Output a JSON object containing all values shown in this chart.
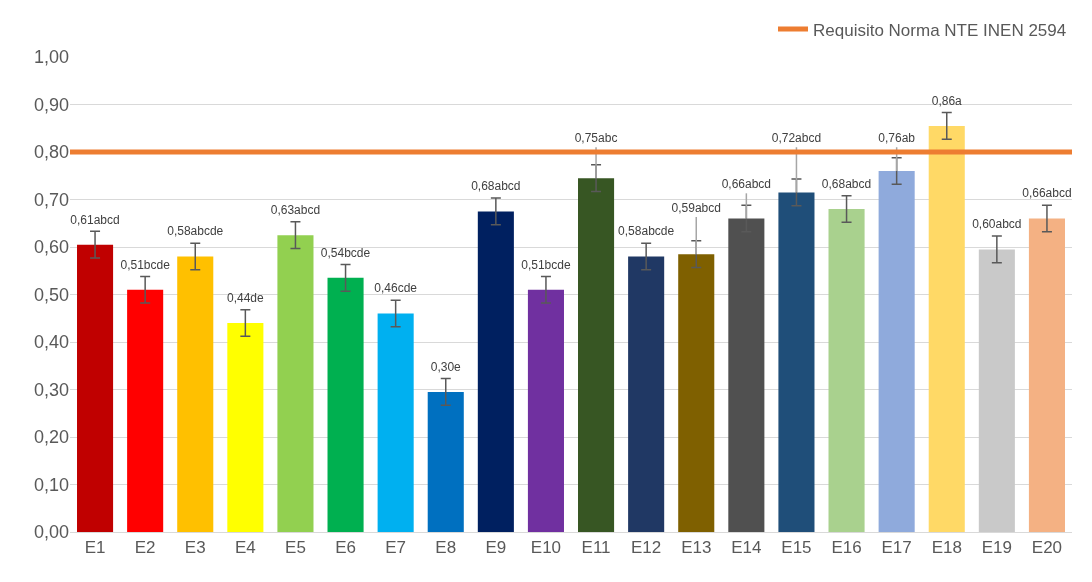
{
  "chart_data": {
    "type": "bar",
    "categories": [
      "E1",
      "E2",
      "E3",
      "E4",
      "E5",
      "E6",
      "E7",
      "E8",
      "E9",
      "E10",
      "E11",
      "E12",
      "E13",
      "E14",
      "E15",
      "E16",
      "E17",
      "E18",
      "E19",
      "E20"
    ],
    "values": [
      0.605,
      0.51,
      0.58,
      0.44,
      0.625,
      0.535,
      0.46,
      0.295,
      0.675,
      0.51,
      0.745,
      0.58,
      0.585,
      0.66,
      0.715,
      0.68,
      0.76,
      0.855,
      0.595,
      0.66
    ],
    "colors": [
      "#c00000",
      "#ff0000",
      "#ffc000",
      "#ffff00",
      "#92d050",
      "#00b050",
      "#00b0f0",
      "#0070c0",
      "#002060",
      "#7030a0",
      "#375623",
      "#203864",
      "#7f6000",
      "#505050",
      "#1f4e79",
      "#a9d18e",
      "#8faadc",
      "#ffd966",
      "#c9c9c9",
      "#f4b183"
    ],
    "errors": [
      0.028,
      0.028,
      0.028,
      0.028,
      0.028,
      0.028,
      0.028,
      0.028,
      0.028,
      0.028,
      0.028,
      0.028,
      0.028,
      0.028,
      0.028,
      0.028,
      0.028,
      0.028,
      0.028,
      0.028
    ],
    "value_labels": [
      "0,61abcd",
      "0,51bcde",
      "0,58abcde",
      "0,44de",
      "0,63abcd",
      "0,54bcde",
      "0,46cde",
      "0,30e",
      "0,68abcd",
      "0,51bcde",
      "0,75abc",
      "0,58abcde",
      "0,59abcd",
      "0,66abcd",
      "0,72abcd",
      "0,68abcd",
      "0,76ab",
      "0,86a",
      "0,60abcd",
      "0,66abcd"
    ],
    "ref_lines": [
      {
        "axis": "y",
        "value": 0.8,
        "label": "Requisito Norma NTE INEN 2594",
        "color": "#ed7d31"
      }
    ],
    "ylim": [
      0,
      1.0
    ],
    "yticks": [
      {
        "value": 0,
        "label": "0,00"
      },
      {
        "value": 0.1,
        "label": "0,10"
      },
      {
        "value": 0.2,
        "label": "0,20"
      },
      {
        "value": 0.3,
        "label": "0,30"
      },
      {
        "value": 0.4,
        "label": "0,40"
      },
      {
        "value": 0.5,
        "label": "0,50"
      },
      {
        "value": 0.6,
        "label": "0,60"
      },
      {
        "value": 0.7,
        "label": "0,70"
      },
      {
        "value": 0.8,
        "label": "0,80"
      },
      {
        "value": 0.9,
        "label": "0,90"
      },
      {
        "value": 1.0,
        "label": "1,00"
      }
    ],
    "grid": "y",
    "legend": "top right"
  }
}
